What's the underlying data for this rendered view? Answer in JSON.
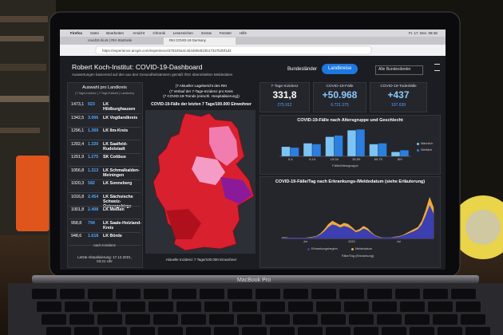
{
  "menu_bar": {
    "items": [
      "Firefox",
      "Datei",
      "Bearbeiten",
      "Ansicht",
      "Chronik",
      "Lesezeichen",
      "Extras",
      "Fenster",
      "Hilfe"
    ],
    "clock": "Fr. 17. Dez. 09:48"
  },
  "browser": {
    "tabs": [
      "covid19.rki.de | RKI-Startseite",
      "RKI COVID-19 Germany"
    ],
    "url": "https://experience.arcgis.com/experience/478220a4c454480e823b17327b2bf1d4"
  },
  "header": {
    "title": "Robert Koch-Institut: COVID-19-Dashboard",
    "subtitle": "Auswertungen basierend auf den aus den Gesundheitsämtern gemäß IfSG übermittelten Meldedaten",
    "buttons": [
      "Bundesländer",
      "Landkreise"
    ],
    "dropdown": "Alle Bundesländer"
  },
  "district_list": {
    "title": "Auswahl pro Landkreis",
    "columns_note": "(7-Tage-Inzidenz | 7-Tage-Fallzahl | Landkreis)",
    "rows": [
      [
        "1473,1",
        "923",
        "LK Hildburghausen"
      ],
      [
        "1342,5",
        "3.066",
        "LK Vogtlandkreis"
      ],
      [
        "1296,1",
        "1.369",
        "LK Ilm-Kreis"
      ],
      [
        "1292,4",
        "1.320",
        "LK Saalfeld-Rudolstadt"
      ],
      [
        "1291,9",
        "1.275",
        "SK Cottbus"
      ],
      [
        "1056,8",
        "1.313",
        "LK Schmalkalden-Meiningen"
      ],
      [
        "1020,3",
        "582",
        "LK Sonneberg"
      ],
      [
        "1016,8",
        "2.454",
        "LK Sächsische Schweiz-Osterzgebirge"
      ],
      [
        "1001,8",
        "2.408",
        "LK Meißen"
      ],
      [
        "958,8",
        "794",
        "LK Saale-Holzland-Kreis"
      ],
      [
        "948,6",
        "1.618",
        "LK Börde"
      ]
    ],
    "sort": "nach Inzidenz",
    "updated": "Letzte Aktualisierung: 17.12.2021, 03:21 Uhr"
  },
  "map": {
    "links": [
      "(7 Aktueller Lagebericht des RKI",
      "(7 Verlauf der 7-Tage-Inzidenz pro Kreis",
      "(7 COVID-19-Trends (einschl. Hospitalisierung))"
    ],
    "title": "COVID-19-Fälle der letzten 7 Tage/100.000 Einwohner",
    "footer": "Aktuelle Inzidenz 7 Tage/100.000 Einwohner"
  },
  "stats": [
    {
      "label": "7-Tage-Inzidenz",
      "value": "331,8",
      "total": "275.912"
    },
    {
      "label": "COVID-19-Fälle",
      "value": "+50.968",
      "total": "6.721.375"
    },
    {
      "label": "COVID-19-Todesfälle",
      "value": "+437",
      "total": "107.639"
    }
  ],
  "chart_data": [
    {
      "type": "bar",
      "title": "COVID-19-Fälle nach Altersgruppe und Geschlecht",
      "x_label": "Fälle/Altersgruppe",
      "categories": [
        "0-4",
        "5-14",
        "15-34",
        "35-59",
        "60-79",
        "80+"
      ],
      "series": [
        {
          "name": "Männlich",
          "color": "#7cc4f5",
          "values": [
            22,
            30,
            45,
            60,
            28,
            10
          ]
        },
        {
          "name": "Weiblich",
          "color": "#2a7fe0",
          "values": [
            20,
            28,
            48,
            62,
            30,
            14
          ]
        }
      ],
      "ylim": [
        0,
        70
      ]
    },
    {
      "type": "area",
      "title": "COVID-19-Fälle/Tag nach Erkrankungs-/Meldedatum (siehe Erläuterung)",
      "x_label": "Fälle/Tag (Erkrankung)",
      "categories": [
        null,
        null,
        null,
        null,
        null,
        null,
        "Jul",
        null,
        null,
        null,
        null,
        null,
        null,
        null,
        null,
        null,
        null,
        null,
        "2021",
        null,
        null,
        null,
        null,
        null,
        null,
        null,
        null,
        null,
        null,
        null,
        "Jul",
        null,
        null,
        null,
        null,
        null,
        null,
        null,
        null,
        null
      ],
      "series": [
        {
          "name": "Meldedatum",
          "color": "#f2a93b",
          "values": [
            2,
            2,
            1,
            1,
            1,
            1,
            1,
            2,
            3,
            5,
            10,
            18,
            28,
            34,
            30,
            26,
            30,
            28,
            22,
            15,
            18,
            24,
            20,
            12,
            6,
            3,
            2,
            2,
            2,
            3,
            4,
            6,
            10,
            14,
            18,
            22,
            34,
            55,
            80,
            60
          ]
        },
        {
          "name": "Erkrankungsbeginn",
          "color": "#3b3fb0",
          "values": [
            1,
            1,
            1,
            1,
            1,
            1,
            1,
            1,
            2,
            4,
            8,
            14,
            22,
            27,
            25,
            21,
            24,
            22,
            18,
            12,
            14,
            19,
            16,
            10,
            5,
            2,
            2,
            2,
            2,
            2,
            3,
            5,
            8,
            11,
            14,
            18,
            27,
            44,
            64,
            48
          ]
        }
      ],
      "ylim": [
        0,
        90
      ]
    }
  ],
  "laptop": {
    "brand": "MacBook Pro"
  }
}
